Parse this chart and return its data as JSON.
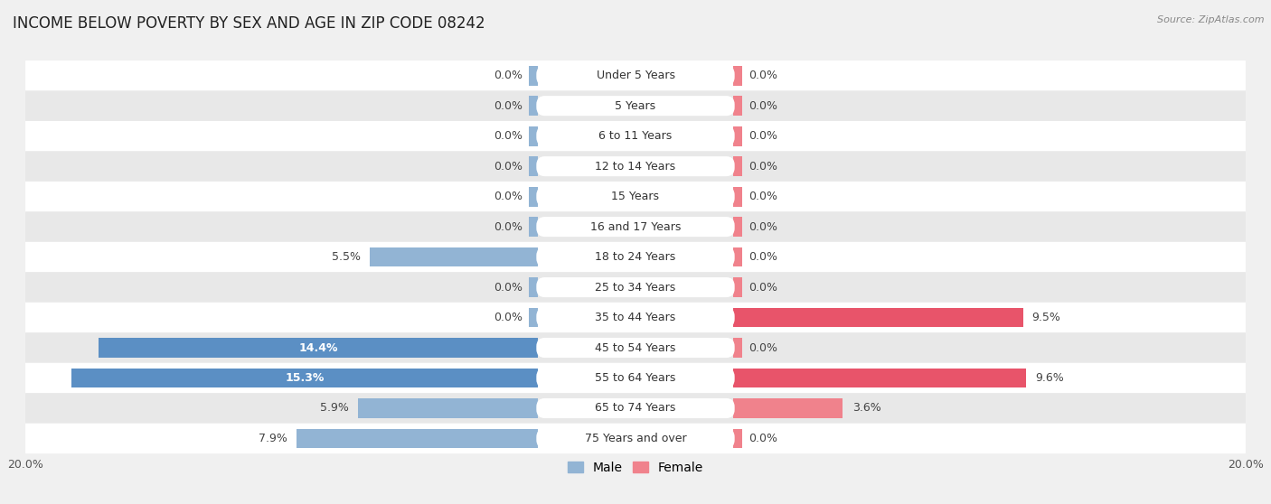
{
  "title": "INCOME BELOW POVERTY BY SEX AND AGE IN ZIP CODE 08242",
  "source": "Source: ZipAtlas.com",
  "categories": [
    "Under 5 Years",
    "5 Years",
    "6 to 11 Years",
    "12 to 14 Years",
    "15 Years",
    "16 and 17 Years",
    "18 to 24 Years",
    "25 to 34 Years",
    "35 to 44 Years",
    "45 to 54 Years",
    "55 to 64 Years",
    "65 to 74 Years",
    "75 Years and over"
  ],
  "male": [
    0.0,
    0.0,
    0.0,
    0.0,
    0.0,
    0.0,
    5.5,
    0.0,
    0.0,
    14.4,
    15.3,
    5.9,
    7.9
  ],
  "female": [
    0.0,
    0.0,
    0.0,
    0.0,
    0.0,
    0.0,
    0.0,
    0.0,
    9.5,
    0.0,
    9.6,
    3.6,
    0.0
  ],
  "male_color": "#92b4d4",
  "female_color": "#f0828c",
  "male_color_large": "#5b8fc4",
  "female_color_large": "#e8546a",
  "male_label": "Male",
  "female_label": "Female",
  "xlim": 20.0,
  "background_color": "#f0f0f0",
  "row_bg_color": "#ffffff",
  "row_alt_color": "#e8e8e8",
  "title_fontsize": 12,
  "label_fontsize": 9,
  "tick_fontsize": 9,
  "source_fontsize": 8
}
